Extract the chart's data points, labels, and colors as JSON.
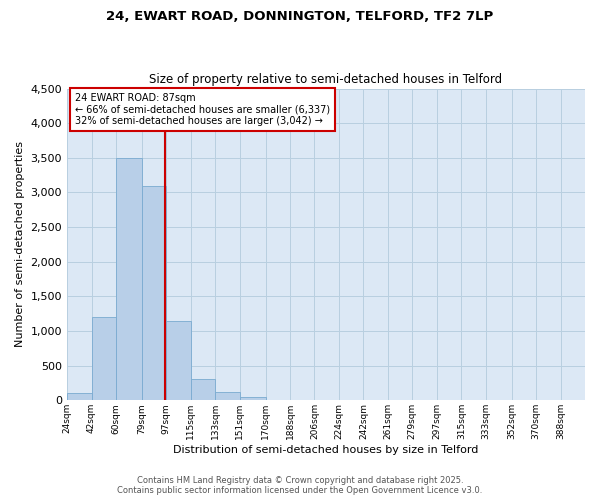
{
  "title_line1": "24, EWART ROAD, DONNINGTON, TELFORD, TF2 7LP",
  "title_line2": "Size of property relative to semi-detached houses in Telford",
  "xlabel": "Distribution of semi-detached houses by size in Telford",
  "ylabel": "Number of semi-detached properties",
  "bar_color": "#b8cfe8",
  "bar_edge_color": "#7aaad0",
  "property_line_color": "#cc0000",
  "property_sqm": 87,
  "annotation_title": "24 EWART ROAD: 87sqm",
  "annotation_line1": "← 66% of semi-detached houses are smaller (6,337)",
  "annotation_line2": "32% of semi-detached houses are larger (3,042) →",
  "annotation_box_color": "#cc0000",
  "categories": [
    "24sqm",
    "42sqm",
    "60sqm",
    "79sqm",
    "97sqm",
    "115sqm",
    "133sqm",
    "151sqm",
    "170sqm",
    "188sqm",
    "206sqm",
    "224sqm",
    "242sqm",
    "261sqm",
    "279sqm",
    "297sqm",
    "315sqm",
    "333sqm",
    "352sqm",
    "370sqm",
    "388sqm"
  ],
  "bin_edges": [
    15,
    33,
    51,
    70,
    88,
    106,
    124,
    142,
    161,
    179,
    197,
    215,
    233,
    251,
    269,
    287,
    305,
    323,
    342,
    360,
    378,
    396
  ],
  "values": [
    100,
    1200,
    3500,
    3100,
    1150,
    310,
    120,
    50,
    0,
    0,
    0,
    0,
    0,
    0,
    0,
    0,
    0,
    0,
    0,
    0,
    0
  ],
  "ylim": [
    0,
    4500
  ],
  "yticks": [
    0,
    500,
    1000,
    1500,
    2000,
    2500,
    3000,
    3500,
    4000,
    4500
  ],
  "background_color": "#ffffff",
  "axes_bg_color": "#dce8f5",
  "grid_color": "#b8cfe0",
  "footer_line1": "Contains HM Land Registry data © Crown copyright and database right 2025.",
  "footer_line2": "Contains public sector information licensed under the Open Government Licence v3.0."
}
